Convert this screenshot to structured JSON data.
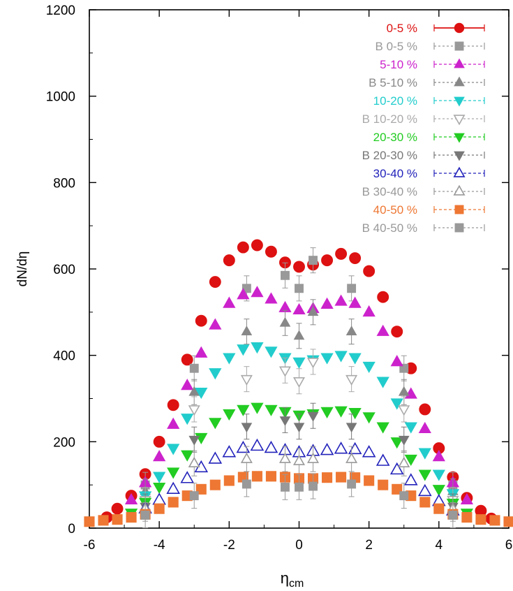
{
  "chart_data": {
    "type": "scatter",
    "title": "",
    "xlabel": "η",
    "xlabel_sub": "cm",
    "ylabel": "dN/dη",
    "xlim": [
      -6,
      6
    ],
    "ylim": [
      0,
      1200
    ],
    "x_ticks": [
      "-6",
      "-4",
      "-2",
      "0",
      "2",
      "4",
      "6"
    ],
    "y_ticks": [
      "0",
      "200",
      "400",
      "600",
      "800",
      "1000",
      "1200"
    ],
    "grid": false,
    "legend_position": "top-right",
    "series": [
      {
        "name": "0-5 %",
        "color": "#dd1111",
        "marker": "circle-filled",
        "x": [
          -5.5,
          -5.2,
          -4.8,
          -4.4,
          -4.0,
          -3.6,
          -3.2,
          -2.8,
          -2.4,
          -2.0,
          -1.6,
          -1.2,
          -0.8,
          -0.4,
          0.0,
          0.4,
          0.8,
          1.2,
          1.6,
          2.0,
          2.4,
          2.8,
          3.2,
          3.6,
          4.0,
          4.4,
          4.8,
          5.2,
          5.5
        ],
        "y": [
          25,
          45,
          75,
          125,
          200,
          285,
          390,
          480,
          570,
          620,
          650,
          655,
          640,
          615,
          605,
          610,
          620,
          635,
          625,
          595,
          535,
          455,
          370,
          275,
          185,
          118,
          70,
          40,
          22
        ]
      },
      {
        "name": "B 0-5 %",
        "color": "#999999",
        "marker": "square-filled",
        "x": [
          -4.4,
          -3.0,
          -1.5,
          -0.4,
          0.0,
          0.4,
          1.5,
          3.0,
          4.4
        ],
        "y": [
          100,
          370,
          555,
          585,
          555,
          620,
          555,
          370,
          100
        ]
      },
      {
        "name": "5-10 %",
        "color": "#cc22cc",
        "marker": "triangle-up-filled",
        "x": [
          -4.8,
          -4.4,
          -4.0,
          -3.6,
          -3.2,
          -2.8,
          -2.4,
          -2.0,
          -1.6,
          -1.2,
          -0.8,
          -0.4,
          0.0,
          0.4,
          0.8,
          1.2,
          1.6,
          2.0,
          2.4,
          2.8,
          3.2,
          3.6,
          4.0,
          4.4,
          4.8
        ],
        "y": [
          65,
          105,
          165,
          240,
          330,
          405,
          470,
          520,
          540,
          545,
          530,
          510,
          505,
          508,
          518,
          525,
          520,
          500,
          455,
          385,
          310,
          230,
          165,
          105,
          65
        ]
      },
      {
        "name": "B 5-10 %",
        "color": "#888888",
        "marker": "triangle-up-filled",
        "x": [
          -4.4,
          -3.0,
          -1.5,
          -0.4,
          0.0,
          0.4,
          1.5,
          3.0,
          4.4
        ],
        "y": [
          85,
          315,
          455,
          475,
          445,
          500,
          455,
          315,
          85
        ]
      },
      {
        "name": "10-20 %",
        "color": "#22cccc",
        "marker": "triangle-down-filled",
        "x": [
          -4.4,
          -4.0,
          -3.6,
          -3.2,
          -2.8,
          -2.4,
          -2.0,
          -1.6,
          -1.2,
          -0.8,
          -0.4,
          0.0,
          0.4,
          0.8,
          1.2,
          1.6,
          2.0,
          2.4,
          2.8,
          3.2,
          3.6,
          4.0,
          4.4
        ],
        "y": [
          75,
          120,
          185,
          255,
          315,
          360,
          395,
          415,
          420,
          410,
          395,
          385,
          390,
          395,
          400,
          395,
          375,
          340,
          290,
          235,
          175,
          125,
          80
        ]
      },
      {
        "name": "B 10-20 %",
        "color": "#aaaaaa",
        "marker": "triangle-down-open",
        "x": [
          -4.4,
          -3.0,
          -1.5,
          -0.4,
          0.0,
          0.4,
          1.5,
          3.0,
          4.4
        ],
        "y": [
          65,
          275,
          345,
          365,
          340,
          385,
          345,
          275,
          65
        ]
      },
      {
        "name": "20-30 %",
        "color": "#22cc22",
        "marker": "triangle-down-filled",
        "x": [
          -4.8,
          -4.4,
          -4.0,
          -3.6,
          -3.2,
          -2.8,
          -2.4,
          -2.0,
          -1.6,
          -1.2,
          -0.8,
          -0.4,
          0.0,
          0.4,
          0.8,
          1.2,
          1.6,
          2.0,
          2.4,
          2.8,
          3.2,
          3.6,
          4.0,
          4.4,
          4.8
        ],
        "y": [
          35,
          60,
          95,
          130,
          170,
          210,
          245,
          265,
          275,
          280,
          275,
          270,
          262,
          265,
          270,
          272,
          268,
          258,
          235,
          200,
          160,
          125,
          90,
          58,
          35
        ]
      },
      {
        "name": "B 20-30 %",
        "color": "#777777",
        "marker": "triangle-down-filled",
        "x": [
          -4.4,
          -3.0,
          -1.5,
          -0.4,
          0.0,
          0.4,
          1.5,
          3.0,
          4.4
        ],
        "y": [
          50,
          205,
          235,
          250,
          235,
          260,
          235,
          205,
          50
        ]
      },
      {
        "name": "30-40 %",
        "color": "#2222bb",
        "marker": "triangle-up-open",
        "x": [
          -4.4,
          -4.0,
          -3.6,
          -3.2,
          -2.8,
          -2.4,
          -2.0,
          -1.6,
          -1.2,
          -0.8,
          -0.4,
          0.0,
          0.4,
          0.8,
          1.2,
          1.6,
          2.0,
          2.4,
          2.8,
          3.2,
          3.6,
          4.0,
          4.4
        ],
        "y": [
          45,
          65,
          90,
          115,
          140,
          160,
          175,
          185,
          190,
          185,
          180,
          175,
          178,
          180,
          183,
          182,
          175,
          155,
          135,
          110,
          85,
          62,
          40
        ]
      },
      {
        "name": "B 30-40 %",
        "color": "#999999",
        "marker": "triangle-up-open",
        "x": [
          -4.4,
          -3.0,
          -1.5,
          -0.4,
          0.0,
          0.4,
          1.5,
          3.0,
          4.4
        ],
        "y": [
          45,
          150,
          160,
          160,
          155,
          160,
          160,
          150,
          45
        ]
      },
      {
        "name": "40-50 %",
        "color": "#ee7733",
        "marker": "square-filled",
        "x": [
          -6.0,
          -5.6,
          -5.2,
          -4.8,
          -4.4,
          -4.0,
          -3.6,
          -3.2,
          -2.8,
          -2.4,
          -2.0,
          -1.6,
          -1.2,
          -0.8,
          -0.4,
          0.0,
          0.4,
          0.8,
          1.2,
          1.6,
          2.0,
          2.4,
          2.8,
          3.2,
          3.6,
          4.0,
          4.4,
          4.8,
          5.2,
          5.6,
          6.0
        ],
        "y": [
          15,
          18,
          20,
          25,
          32,
          45,
          60,
          75,
          90,
          100,
          110,
          118,
          120,
          120,
          118,
          115,
          115,
          117,
          118,
          117,
          110,
          100,
          90,
          75,
          60,
          45,
          32,
          25,
          20,
          18,
          15
        ]
      },
      {
        "name": "B 40-50 %",
        "color": "#999999",
        "marker": "square-filled",
        "x": [
          -4.4,
          -3.0,
          -1.5,
          -0.4,
          0.0,
          0.4,
          1.5,
          3.0,
          4.4
        ],
        "y": [
          30,
          75,
          102,
          95,
          95,
          97,
          102,
          75,
          30
        ]
      }
    ]
  }
}
